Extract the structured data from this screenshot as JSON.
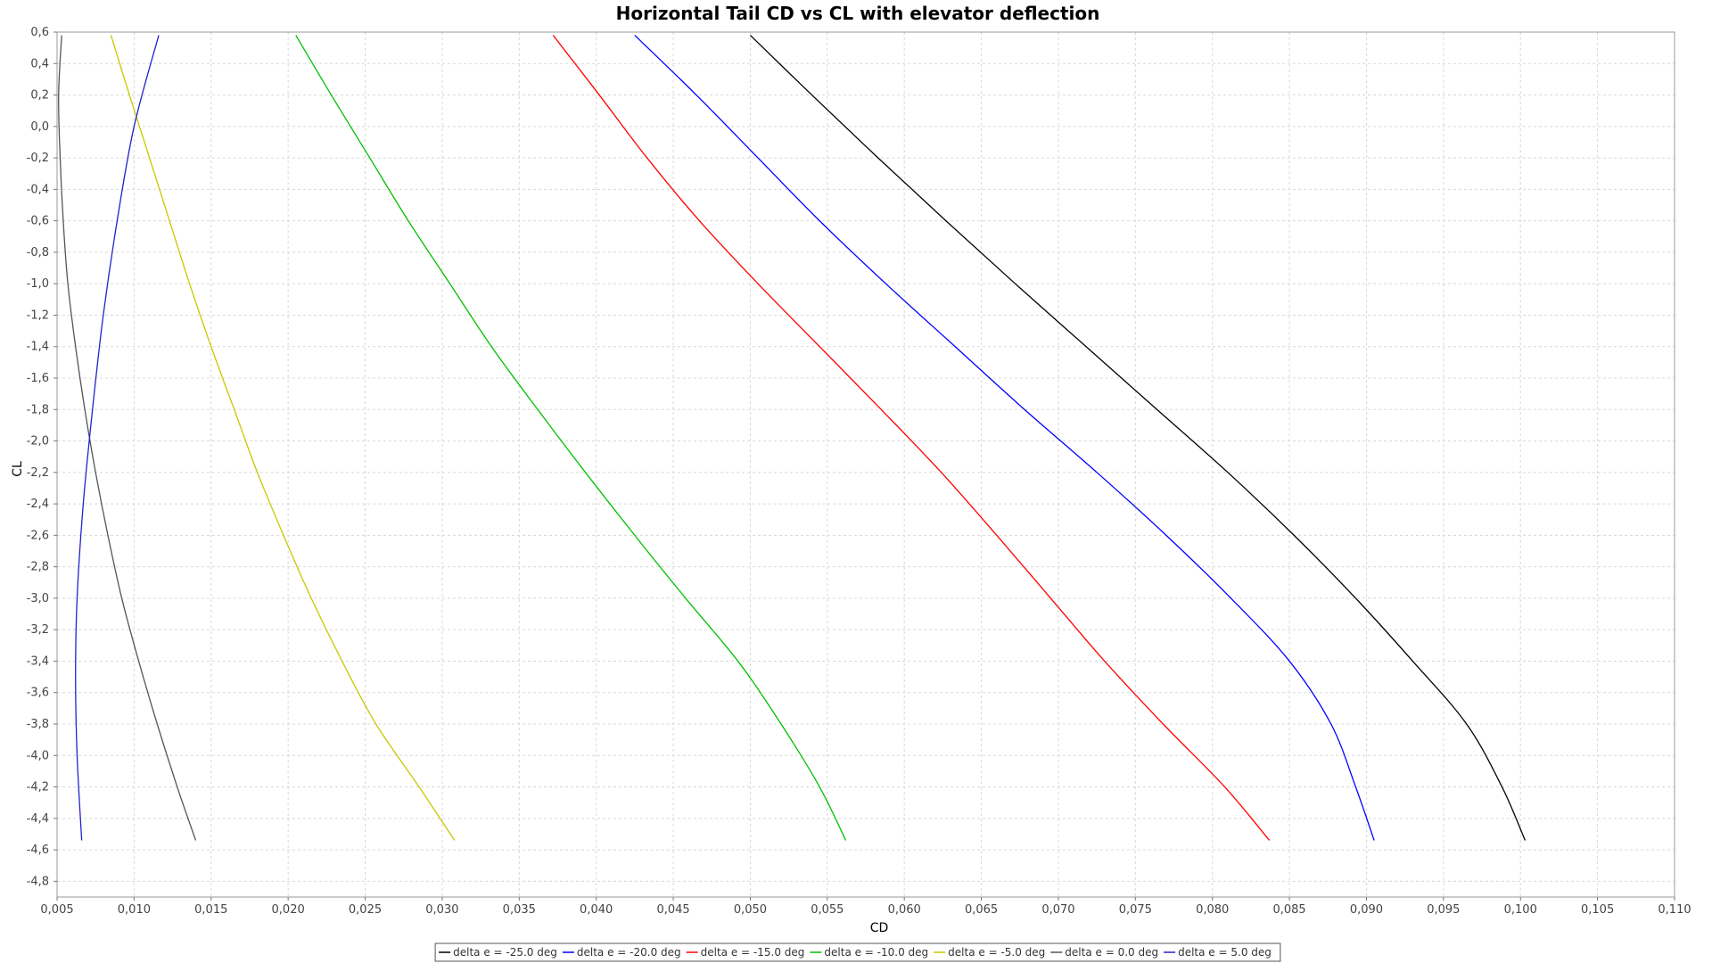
{
  "chart_data": {
    "type": "line",
    "title": "Horizontal Tail CD vs CL with elevator deflection",
    "xlabel": "CD",
    "ylabel": "CL",
    "xlim": [
      0.005,
      0.11
    ],
    "ylim": [
      -4.9,
      0.6
    ],
    "x_ticks": [
      "0,005",
      "0,010",
      "0,015",
      "0,020",
      "0,025",
      "0,030",
      "0,035",
      "0,040",
      "0,045",
      "0,050",
      "0,055",
      "0,060",
      "0,065",
      "0,070",
      "0,075",
      "0,080",
      "0,085",
      "0,090",
      "0,095",
      "0,100",
      "0,105",
      "0,110"
    ],
    "y_ticks": [
      "0,6",
      "0,4",
      "0,2",
      "0,0",
      "-0,2",
      "-0,4",
      "-0,6",
      "-0,8",
      "-1,0",
      "-1,2",
      "-1,4",
      "-1,6",
      "-1,8",
      "-2,0",
      "-2,2",
      "-2,4",
      "-2,6",
      "-2,8",
      "-3,0",
      "-3,2",
      "-3,4",
      "-3,6",
      "-3,8",
      "-4,0",
      "-4,2",
      "-4,4",
      "-4,6",
      "-4,8"
    ],
    "grid": true,
    "legend_position": "bottom-center",
    "series": [
      {
        "name": "delta e = -25.0 deg",
        "color": "#000000",
        "points": [
          [
            0.05,
            0.58
          ],
          [
            0.054,
            0.2
          ],
          [
            0.0583,
            -0.2
          ],
          [
            0.0627,
            -0.6
          ],
          [
            0.0672,
            -1.0
          ],
          [
            0.0718,
            -1.4
          ],
          [
            0.0764,
            -1.8
          ],
          [
            0.081,
            -2.2
          ],
          [
            0.0853,
            -2.6
          ],
          [
            0.0893,
            -3.0
          ],
          [
            0.093,
            -3.4
          ],
          [
            0.0965,
            -3.8
          ],
          [
            0.0988,
            -4.2
          ],
          [
            0.1003,
            -4.54
          ]
        ]
      },
      {
        "name": "delta e = -20.0 deg",
        "color": "#0000ff",
        "points": [
          [
            0.0425,
            0.58
          ],
          [
            0.0465,
            0.2
          ],
          [
            0.0505,
            -0.2
          ],
          [
            0.0545,
            -0.6
          ],
          [
            0.0588,
            -1.0
          ],
          [
            0.0633,
            -1.4
          ],
          [
            0.0678,
            -1.8
          ],
          [
            0.0725,
            -2.2
          ],
          [
            0.077,
            -2.6
          ],
          [
            0.0812,
            -3.0
          ],
          [
            0.085,
            -3.4
          ],
          [
            0.0877,
            -3.8
          ],
          [
            0.0893,
            -4.2
          ],
          [
            0.0905,
            -4.54
          ]
        ]
      },
      {
        "name": "delta e = -15.0 deg",
        "color": "#ff0000",
        "points": [
          [
            0.0372,
            0.58
          ],
          [
            0.0402,
            0.2
          ],
          [
            0.0433,
            -0.2
          ],
          [
            0.0467,
            -0.6
          ],
          [
            0.0505,
            -1.0
          ],
          [
            0.0545,
            -1.4
          ],
          [
            0.0585,
            -1.8
          ],
          [
            0.0624,
            -2.2
          ],
          [
            0.066,
            -2.6
          ],
          [
            0.0695,
            -3.0
          ],
          [
            0.073,
            -3.4
          ],
          [
            0.0768,
            -3.8
          ],
          [
            0.0808,
            -4.2
          ],
          [
            0.0837,
            -4.54
          ]
        ]
      },
      {
        "name": "delta e = -10.0 deg",
        "color": "#00c000",
        "points": [
          [
            0.0205,
            0.58
          ],
          [
            0.0228,
            0.2
          ],
          [
            0.0253,
            -0.2
          ],
          [
            0.0278,
            -0.6
          ],
          [
            0.0305,
            -1.0
          ],
          [
            0.0332,
            -1.4
          ],
          [
            0.0362,
            -1.8
          ],
          [
            0.0393,
            -2.2
          ],
          [
            0.0425,
            -2.6
          ],
          [
            0.0458,
            -3.0
          ],
          [
            0.0492,
            -3.4
          ],
          [
            0.052,
            -3.8
          ],
          [
            0.0545,
            -4.2
          ],
          [
            0.0562,
            -4.54
          ]
        ]
      },
      {
        "name": "delta e = -5.0 deg",
        "color": "#c8c800",
        "points": [
          [
            0.0085,
            0.58
          ],
          [
            0.0097,
            0.2
          ],
          [
            0.011,
            -0.2
          ],
          [
            0.0123,
            -0.6
          ],
          [
            0.0136,
            -1.0
          ],
          [
            0.015,
            -1.4
          ],
          [
            0.0165,
            -1.8
          ],
          [
            0.018,
            -2.2
          ],
          [
            0.0197,
            -2.6
          ],
          [
            0.0215,
            -3.0
          ],
          [
            0.0235,
            -3.4
          ],
          [
            0.0257,
            -3.8
          ],
          [
            0.0285,
            -4.2
          ],
          [
            0.0308,
            -4.54
          ]
        ]
      },
      {
        "name": "delta e = 0.0 deg",
        "color": "#555555",
        "points": [
          [
            0.0053,
            0.58
          ],
          [
            0.0051,
            0.2
          ],
          [
            0.0052,
            -0.2
          ],
          [
            0.0054,
            -0.6
          ],
          [
            0.0057,
            -1.0
          ],
          [
            0.0062,
            -1.4
          ],
          [
            0.0068,
            -1.8
          ],
          [
            0.0075,
            -2.2
          ],
          [
            0.0083,
            -2.6
          ],
          [
            0.0092,
            -3.0
          ],
          [
            0.0103,
            -3.4
          ],
          [
            0.0115,
            -3.8
          ],
          [
            0.0128,
            -4.2
          ],
          [
            0.014,
            -4.54
          ]
        ]
      },
      {
        "name": "delta e = 5.0 deg",
        "color": "#2222cc",
        "points": [
          [
            0.0116,
            0.58
          ],
          [
            0.01,
            0.0
          ],
          [
            0.0089,
            -0.6
          ],
          [
            0.008,
            -1.2
          ],
          [
            0.0073,
            -1.8
          ],
          [
            0.0067,
            -2.4
          ],
          [
            0.0063,
            -3.0
          ],
          [
            0.0062,
            -3.5
          ],
          [
            0.0063,
            -4.0
          ],
          [
            0.0066,
            -4.54
          ]
        ]
      }
    ]
  }
}
